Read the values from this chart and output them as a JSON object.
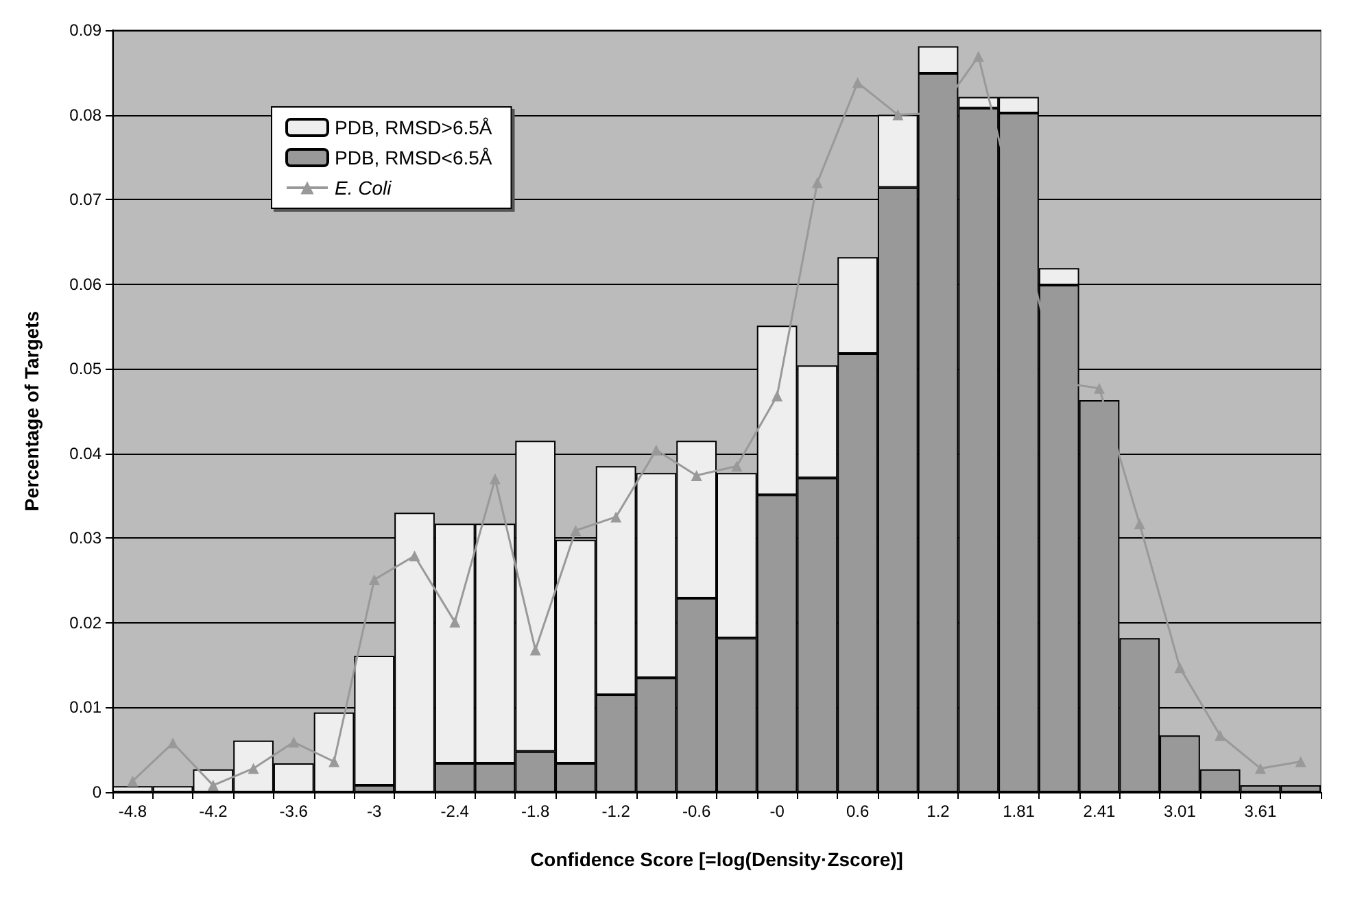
{
  "chart_data": {
    "type": "bar",
    "stacked": true,
    "xlabel": "Confidence Score [=log(Density·Zscore)]",
    "ylabel": "Percentage of Targets",
    "categories": [
      "-4.8",
      null,
      "-4.2",
      null,
      "-3.6",
      null,
      "-3",
      null,
      "-2.4",
      null,
      "-1.8",
      null,
      "-1.2",
      null,
      "-0.6",
      null,
      "-0",
      null,
      "0.6",
      null,
      "1.2",
      null,
      "1.81",
      null,
      "2.41",
      null,
      "3.01",
      null,
      "3.61",
      null
    ],
    "series": [
      {
        "name": "PDB, RMSD<6.5Å",
        "color": "#999999",
        "values": [
          null,
          null,
          null,
          null,
          null,
          null,
          0.0008,
          null,
          0.0034,
          0.0034,
          0.0048,
          0.0034,
          0.0115,
          0.0135,
          0.0229,
          0.0182,
          0.0351,
          0.0371,
          0.0518,
          0.0714,
          0.0849,
          0.0808,
          0.0802,
          0.0599,
          0.0463,
          0.0182,
          0.0067,
          0.0027,
          0.0008,
          0.0008
        ]
      },
      {
        "name": "PDB, RMSD>6.5Å",
        "color": "#eeeeee",
        "values": [
          0.0007,
          0.0007,
          0.0027,
          0.0061,
          0.0034,
          0.0094,
          0.0153,
          0.033,
          0.0283,
          0.0283,
          0.0367,
          0.0264,
          0.027,
          0.0242,
          0.0186,
          0.0195,
          0.02,
          0.0133,
          0.0114,
          0.0086,
          0.0032,
          0.0013,
          0.0019,
          0.002,
          null,
          null,
          null,
          null,
          null,
          null
        ]
      },
      {
        "name": "E. Coli",
        "type": "line",
        "color": "#999999",
        "values": [
          0.0013,
          0.0058,
          0.0008,
          0.0028,
          0.0059,
          0.0036,
          0.0251,
          0.0279,
          0.0201,
          0.037,
          0.0168,
          0.0309,
          0.0325,
          0.0404,
          0.0374,
          0.0385,
          0.0468,
          0.072,
          0.0838,
          0.08,
          0.0802,
          0.0869,
          0.0676,
          0.0484,
          0.0477,
          0.0317,
          0.0147,
          0.0067,
          0.0028,
          0.0036
        ]
      }
    ],
    "ylim": [
      0,
      0.09
    ],
    "yticks": [
      0,
      0.01,
      0.02,
      0.03,
      0.04,
      0.05,
      0.06,
      0.07,
      0.08,
      0.09
    ],
    "grid": "y",
    "legend": "top left",
    "marker": "triangle"
  }
}
